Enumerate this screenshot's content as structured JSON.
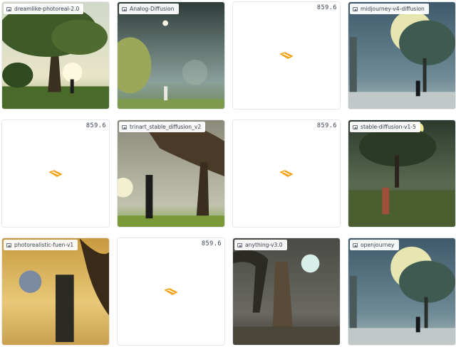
{
  "cards": [
    {
      "label": "dreamlike-photoreal-2.0",
      "state": "image",
      "scene": "tree-sunset"
    },
    {
      "label": "Analog-Diffusion",
      "state": "image",
      "scene": "lake-moon"
    },
    {
      "value": "859.6",
      "state": "loading"
    },
    {
      "label": "midjourney-v4-diffusion",
      "state": "image",
      "scene": "blue-moon"
    },
    {
      "value": "859.6",
      "state": "loading"
    },
    {
      "label": "trinart_stable_diffusion_v2",
      "state": "image",
      "scene": "big-tree"
    },
    {
      "value": "859.6",
      "state": "loading"
    },
    {
      "label": "stable-diffusion-v1-5",
      "state": "image",
      "scene": "night-field"
    },
    {
      "label": "photorealistic-fuen-v1",
      "state": "image",
      "scene": "golden-moon"
    },
    {
      "value": "859.6",
      "state": "loading"
    },
    {
      "label": "anything-v3.0",
      "state": "image",
      "scene": "warrior"
    },
    {
      "label": "openjourney",
      "state": "image",
      "scene": "blue-moon"
    }
  ],
  "colors": {
    "loader": "#f59e0b",
    "border": "#e5e7eb"
  }
}
